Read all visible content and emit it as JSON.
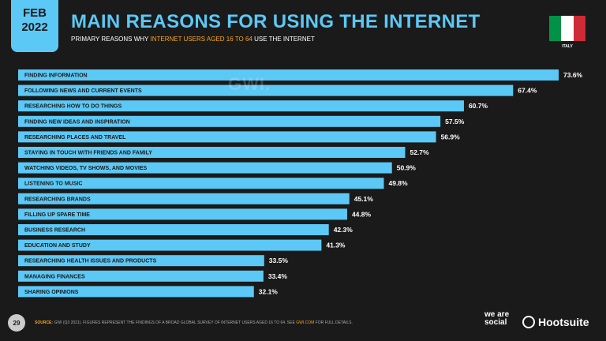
{
  "header": {
    "month": "FEB",
    "year": "2022",
    "title": "MAIN REASONS FOR USING THE INTERNET",
    "subtitle_pre": "PRIMARY REASONS WHY ",
    "subtitle_highlight": "INTERNET USERS AGED 16 TO 64",
    "subtitle_post": " USE THE INTERNET",
    "country": "ITALY",
    "flag_colors": [
      "#009246",
      "#ffffff",
      "#ce2b37"
    ]
  },
  "watermark": "GWI.",
  "colors": {
    "accent": "#5cc8f5",
    "highlight": "#f5a623",
    "background": "#1a1a1a",
    "bar": "#5cc8f5"
  },
  "chart_data": {
    "type": "bar",
    "orientation": "horizontal",
    "categories": [
      "FINDING INFORMATION",
      "FOLLOWING NEWS AND CURRENT EVENTS",
      "RESEARCHING HOW TO DO THINGS",
      "FINDING NEW IDEAS AND INSPIRATION",
      "RESEARCHING PLACES AND TRAVEL",
      "STAYING IN TOUCH WITH FRIENDS AND FAMILY",
      "WATCHING VIDEOS, TV SHOWS, AND MOVIES",
      "LISTENING TO MUSIC",
      "RESEARCHING BRANDS",
      "FILLING UP SPARE TIME",
      "BUSINESS RESEARCH",
      "EDUCATION AND STUDY",
      "RESEARCHING HEALTH ISSUES AND PRODUCTS",
      "MANAGING FINANCES",
      "SHARING OPINIONS"
    ],
    "values": [
      73.6,
      67.4,
      60.7,
      57.5,
      56.9,
      52.7,
      50.9,
      49.8,
      45.1,
      44.8,
      42.3,
      41.3,
      33.5,
      33.4,
      32.1
    ],
    "value_labels": [
      "73.6%",
      "67.4%",
      "60.7%",
      "57.5%",
      "56.9%",
      "52.7%",
      "50.9%",
      "49.8%",
      "45.1%",
      "44.8%",
      "42.3%",
      "41.3%",
      "33.5%",
      "33.4%",
      "32.1%"
    ],
    "unit": "%",
    "xlim": [
      0,
      73.6
    ],
    "grid": false,
    "legend": "none"
  },
  "footer": {
    "page_number": "29",
    "source_label": "SOURCE:",
    "source_text": " GWI (Q3 2021). FIGURES REPRESENT THE FINDINGS OF A BROAD GLOBAL SURVEY OF INTERNET USERS AGED 16 TO 64. SEE ",
    "source_link": "GWI.COM",
    "source_tail": " FOR FULL DETAILS.",
    "brand_1": "we are social",
    "brand_2": "Hootsuite"
  }
}
